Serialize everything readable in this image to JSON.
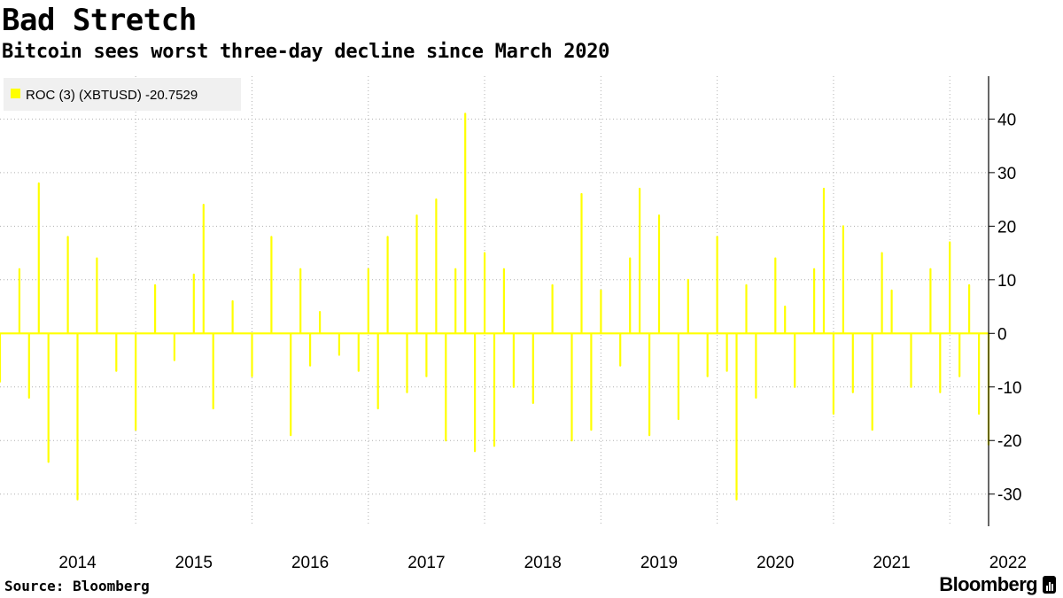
{
  "header": {
    "title": "Bad Stretch",
    "subtitle": "Bitcoin sees worst three-day decline since March 2020"
  },
  "footer": {
    "source": "Source: Bloomberg",
    "brand": "Bloomberg"
  },
  "colors": {
    "series": "#ffff00",
    "grid": "#b0b0b0",
    "legend_bg": "#f0f0f0",
    "axis": "#000000"
  },
  "chart_data": {
    "type": "line",
    "legend": {
      "position": "top-left",
      "entries": [
        {
          "label": "ROC (3) (XBTUSD) -20.7529",
          "color": "#ffff00"
        }
      ]
    },
    "x_ticks": [
      "2014",
      "2015",
      "2016",
      "2017",
      "2018",
      "2019",
      "2020",
      "2021",
      "2022"
    ],
    "y_ticks": [
      40,
      30,
      20,
      10,
      0,
      -10,
      -20,
      -30
    ],
    "ylim": [
      -36,
      48
    ],
    "xlim": [
      "2013-11",
      "2022-05"
    ],
    "grid": true,
    "y_axis_side": "right",
    "series": [
      {
        "name": "ROC (3) (XBTUSD)",
        "x": [
          "2013-11",
          "2014-01",
          "2014-02",
          "2014-03",
          "2014-04",
          "2014-06",
          "2014-07",
          "2014-09",
          "2014-11",
          "2015-01",
          "2015-03",
          "2015-05",
          "2015-07",
          "2015-08",
          "2015-09",
          "2015-11",
          "2016-01",
          "2016-03",
          "2016-05",
          "2016-06",
          "2016-07",
          "2016-08",
          "2016-10",
          "2016-12",
          "2017-01",
          "2017-02",
          "2017-03",
          "2017-05",
          "2017-06",
          "2017-07",
          "2017-08",
          "2017-09",
          "2017-10",
          "2017-11",
          "2017-12",
          "2018-01",
          "2018-02",
          "2018-03",
          "2018-04",
          "2018-06",
          "2018-08",
          "2018-10",
          "2018-11",
          "2018-12",
          "2019-01",
          "2019-03",
          "2019-04",
          "2019-05",
          "2019-06",
          "2019-07",
          "2019-09",
          "2019-10",
          "2019-12",
          "2020-01",
          "2020-02",
          "2020-03",
          "2020-04",
          "2020-05",
          "2020-07",
          "2020-08",
          "2020-09",
          "2020-11",
          "2020-12",
          "2021-01",
          "2021-02",
          "2021-03",
          "2021-05",
          "2021-06",
          "2021-07",
          "2021-09",
          "2021-11",
          "2021-12",
          "2022-01",
          "2022-02",
          "2022-03",
          "2022-04",
          "2022-05"
        ],
        "values": [
          -9,
          12,
          -12,
          28,
          -24,
          18,
          -31,
          14,
          -7,
          -18,
          9,
          -5,
          11,
          24,
          -14,
          6,
          -8,
          18,
          -19,
          12,
          -6,
          4,
          -4,
          -7,
          12,
          -14,
          18,
          -11,
          22,
          -8,
          25,
          -20,
          12,
          41,
          -22,
          15,
          -21,
          12,
          -10,
          -13,
          9,
          -20,
          26,
          -18,
          8,
          -6,
          14,
          27,
          -19,
          22,
          -16,
          10,
          -8,
          18,
          -7,
          -31,
          9,
          -12,
          14,
          5,
          -10,
          12,
          27,
          -15,
          20,
          -11,
          -18,
          15,
          8,
          -10,
          12,
          -11,
          17,
          -8,
          9,
          -15,
          -20.75
        ]
      }
    ]
  }
}
